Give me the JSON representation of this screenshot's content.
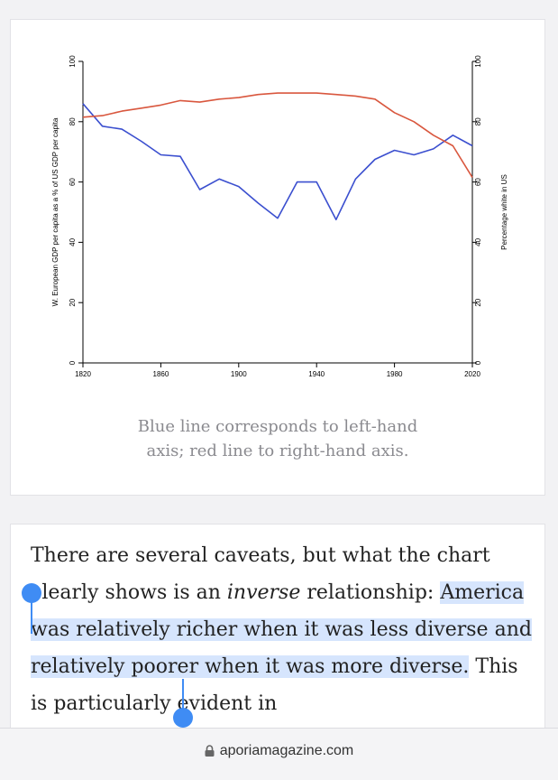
{
  "chart_data": {
    "type": "line",
    "ylabel_left": "W. European GDP per capita as a % of US GDP per capita",
    "ylabel_right": "Percentage white in US",
    "x_ticks": [
      1820,
      1860,
      1900,
      1940,
      1980,
      2020
    ],
    "y_ticks": [
      0,
      20,
      40,
      60,
      80,
      100
    ],
    "xlim": [
      1820,
      2020
    ],
    "ylim_left": [
      0,
      100
    ],
    "ylim_right": [
      0,
      100
    ],
    "grid": false,
    "series": [
      {
        "axis": "left",
        "color": "#3b4fcf",
        "points": [
          [
            1820,
            86
          ],
          [
            1830,
            78.5
          ],
          [
            1840,
            77.5
          ],
          [
            1850,
            73.5
          ],
          [
            1860,
            69
          ],
          [
            1870,
            68.5
          ],
          [
            1880,
            57.5
          ],
          [
            1890,
            61
          ],
          [
            1900,
            58.5
          ],
          [
            1910,
            53
          ],
          [
            1920,
            48
          ],
          [
            1930,
            60
          ],
          [
            1940,
            60
          ],
          [
            1950,
            47.5
          ],
          [
            1960,
            61
          ],
          [
            1970,
            67.5
          ],
          [
            1980,
            70.5
          ],
          [
            1990,
            69
          ],
          [
            2000,
            71
          ],
          [
            2010,
            75.5
          ],
          [
            2020,
            72
          ]
        ]
      },
      {
        "axis": "right",
        "color": "#d9573e",
        "points": [
          [
            1820,
            81.5
          ],
          [
            1830,
            82
          ],
          [
            1840,
            83.5
          ],
          [
            1850,
            84.5
          ],
          [
            1860,
            85.5
          ],
          [
            1870,
            87
          ],
          [
            1880,
            86.5
          ],
          [
            1890,
            87.5
          ],
          [
            1900,
            88
          ],
          [
            1910,
            89
          ],
          [
            1920,
            89.5
          ],
          [
            1930,
            89.5
          ],
          [
            1940,
            89.5
          ],
          [
            1950,
            89
          ],
          [
            1960,
            88.5
          ],
          [
            1970,
            87.5
          ],
          [
            1980,
            83
          ],
          [
            1990,
            80
          ],
          [
            2000,
            75.5
          ],
          [
            2010,
            72
          ],
          [
            2020,
            61.5
          ]
        ]
      }
    ]
  },
  "figure": {
    "caption_line1": "Blue line corresponds to left-hand",
    "caption_line2": "axis; red line to right-hand axis."
  },
  "article": {
    "before_italic": "There are several caveats, but what the chart clearly shows is an ",
    "italic": "inverse",
    "after_italic": " relationship: ",
    "selected": "America was relatively richer when it was less diverse and relatively poorer when it was more diverse.",
    "after_selected": " This is particularly evident in"
  },
  "browser": {
    "url": "aporiamagazine.com"
  }
}
